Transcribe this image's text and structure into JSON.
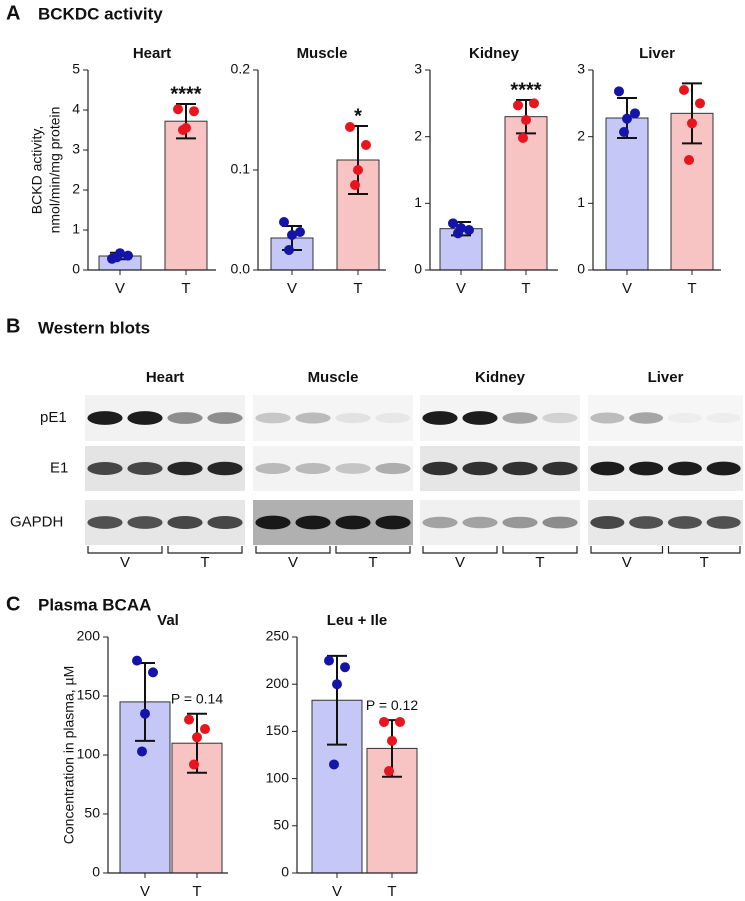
{
  "panel_a": {
    "section_label": "A",
    "title": "BCKDC activity",
    "y_label": [
      "BCKD activity,",
      "nmol/min/mg protein"
    ]
  },
  "western_blots": {
    "section_label": "B",
    "title": "Western blots",
    "tissues": [
      "Heart",
      "Muscle",
      "Kidney",
      "Liver"
    ],
    "rows": [
      "pE1",
      "E1",
      "GAPDH"
    ],
    "groups": [
      "V",
      "T"
    ]
  },
  "panel_c": {
    "section_label": "C",
    "title": "Plasma BCAA",
    "y_label": "Concentration in plasma, µM"
  },
  "chart_data": [
    {
      "type": "bar",
      "title": "Heart",
      "categories": [
        "V",
        "T"
      ],
      "values": [
        0.35,
        3.72
      ],
      "errors": [
        0.08,
        0.43
      ],
      "points": [
        [
          0.28,
          0.36,
          0.42,
          0.32
        ],
        [
          4.02,
          3.97,
          3.55,
          3.5
        ]
      ],
      "annotation": "****",
      "bar_colors": [
        "#c5c8f7",
        "#f8c3c3"
      ],
      "point_colors": [
        "#1414a8",
        "#e8141e"
      ],
      "ylim": [
        0,
        5
      ],
      "yticks": [
        0,
        1,
        2,
        3,
        4,
        5
      ]
    },
    {
      "type": "bar",
      "title": "Muscle",
      "categories": [
        "V",
        "T"
      ],
      "values": [
        0.032,
        0.11
      ],
      "errors": [
        0.012,
        0.034
      ],
      "points": [
        [
          0.048,
          0.038,
          0.035,
          0.02
        ],
        [
          0.143,
          0.125,
          0.1,
          0.085
        ]
      ],
      "annotation": "*",
      "bar_colors": [
        "#c5c8f7",
        "#f8c3c3"
      ],
      "point_colors": [
        "#1414a8",
        "#e8141e"
      ],
      "ylim": [
        0,
        0.2
      ],
      "yticks": [
        {
          "value": 0,
          "label": "0.0"
        },
        {
          "value": 0.1,
          "label": "0.1"
        },
        {
          "value": 0.2,
          "label": "0.2"
        }
      ]
    },
    {
      "type": "bar",
      "title": "Kidney",
      "categories": [
        "V",
        "T"
      ],
      "values": [
        0.62,
        2.3
      ],
      "errors": [
        0.1,
        0.25
      ],
      "points": [
        [
          0.7,
          0.6,
          0.63,
          0.55
        ],
        [
          2.47,
          2.5,
          2.25,
          1.98
        ]
      ],
      "annotation": "****",
      "bar_colors": [
        "#c5c8f7",
        "#f8c3c3"
      ],
      "point_colors": [
        "#1414a8",
        "#e8141e"
      ],
      "ylim": [
        0,
        3
      ],
      "yticks": [
        0,
        1,
        2,
        3
      ]
    },
    {
      "type": "bar",
      "title": "Liver",
      "categories": [
        "V",
        "T"
      ],
      "values": [
        2.28,
        2.35
      ],
      "errors": [
        0.3,
        0.45
      ],
      "points": [
        [
          2.68,
          2.35,
          2.27,
          2.07
        ],
        [
          2.7,
          2.5,
          2.2,
          1.65
        ]
      ],
      "bar_colors": [
        "#c5c8f7",
        "#f8c3c3"
      ],
      "point_colors": [
        "#1414a8",
        "#e8141e"
      ],
      "ylim": [
        0,
        3
      ],
      "yticks": [
        0,
        1,
        2,
        3
      ]
    },
    {
      "type": "bar",
      "title": "Val",
      "categories": [
        "V",
        "T"
      ],
      "values": [
        145,
        110
      ],
      "errors": [
        33,
        25
      ],
      "points": [
        [
          180,
          170,
          135,
          103
        ],
        [
          130,
          122,
          115,
          92
        ]
      ],
      "annotation": "P = 0.14",
      "bar_colors": [
        "#c5c8f7",
        "#f8c3c3"
      ],
      "point_colors": [
        "#1414a8",
        "#e8141e"
      ],
      "ylim": [
        0,
        200
      ],
      "yticks": [
        0,
        50,
        100,
        150,
        200
      ]
    },
    {
      "type": "bar",
      "title": "Leu + Ile",
      "categories": [
        "V",
        "T"
      ],
      "values": [
        183,
        132
      ],
      "errors": [
        47,
        30
      ],
      "points": [
        [
          225,
          218,
          200,
          115
        ],
        [
          160,
          160,
          140,
          108
        ]
      ],
      "annotation": "P = 0.12",
      "bar_colors": [
        "#c5c8f7",
        "#f8c3c3"
      ],
      "point_colors": [
        "#1414a8",
        "#e8141e"
      ],
      "ylim": [
        0,
        250
      ],
      "yticks": [
        0,
        50,
        100,
        150,
        200,
        250
      ]
    }
  ]
}
